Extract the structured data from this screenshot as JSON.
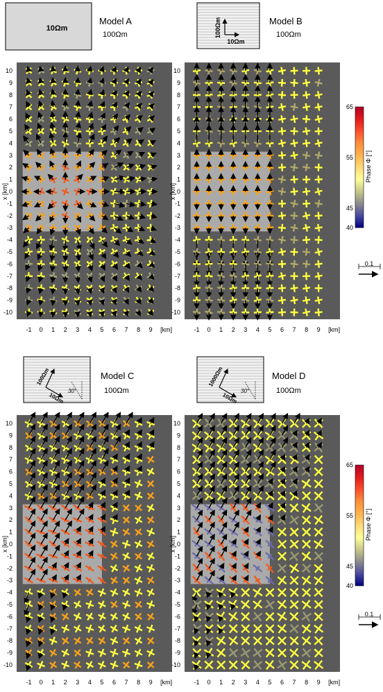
{
  "colorbar": {
    "label": "Phase Φ [°]",
    "ticks": [
      "65",
      "55",
      "45",
      "40"
    ],
    "stops": [
      "#b10026",
      "#e31a1c",
      "#fc4e2a",
      "#fd8d3c",
      "#feb24c",
      "#fed976",
      "#ffff99",
      "#c7c98a",
      "#8c8c8c",
      "#4a4aa0",
      "#000080"
    ],
    "scale_label": "0.1"
  },
  "axes": {
    "x_label": "x [km]",
    "y_label": "y [km]",
    "x_ticks": [
      "10",
      "9",
      "8",
      "7",
      "6",
      "5",
      "4",
      "3",
      "2",
      "1",
      "0",
      "-1",
      "-2",
      "-3",
      "-4",
      "-5",
      "-6",
      "-7",
      "-8",
      "-9",
      "-10"
    ],
    "y_ticks": [
      "-1",
      "0",
      "1",
      "2",
      "3",
      "4",
      "5",
      "6",
      "7",
      "8",
      "9"
    ],
    "y_unit": "[km]"
  },
  "colors": {
    "background": "#5a5a5a",
    "anomaly": "#b8b8b8",
    "arrow": "#000000",
    "high_phase": "#f05a1e",
    "mid_phase": "#f7a21b",
    "low_phase": "#ffff40",
    "bg_phase": "#e8e05a"
  },
  "panels": [
    {
      "model": "Model A",
      "host": "100Ωm",
      "inset_labels": [
        "10Ωm"
      ],
      "inset_style": "plain",
      "pattern": "radial"
    },
    {
      "model": "Model B",
      "host": "100Ωm",
      "inset_labels": [
        "100Ωm",
        "10Ωm"
      ],
      "inset_style": "hatched-axes",
      "pattern": "along-x"
    },
    {
      "model": "Model C",
      "host": "100Ωm",
      "inset_labels": [
        "100Ωm",
        "10Ωm",
        "30°"
      ],
      "inset_style": "hatched-rotated",
      "pattern": "rotated"
    },
    {
      "model": "Model D",
      "host": "100Ωm",
      "inset_labels": [
        "1000Ωm",
        "10Ωm",
        "30°"
      ],
      "inset_style": "hatched-rotated",
      "pattern": "rotated-strong"
    }
  ]
}
